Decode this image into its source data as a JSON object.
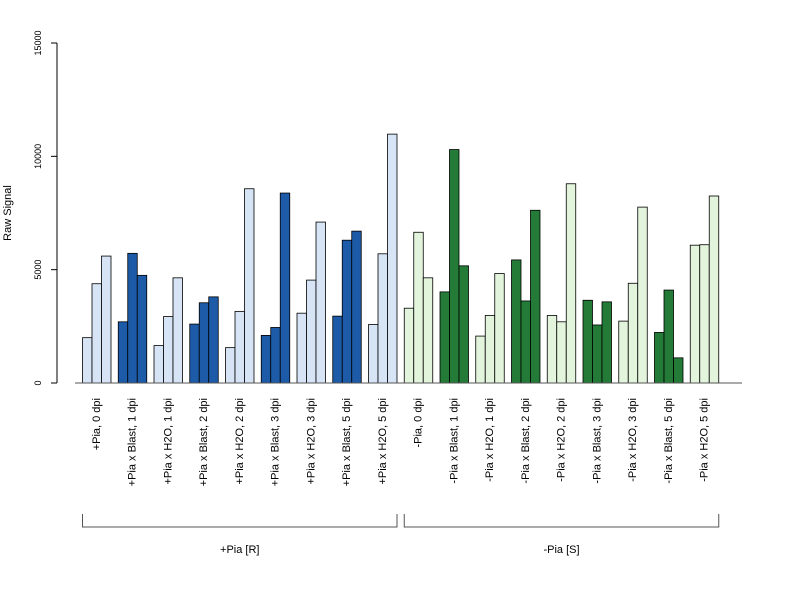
{
  "chart_data": {
    "type": "bar",
    "ylabel": "Raw Signal",
    "ylim": [
      0,
      15000
    ],
    "yticks": [
      "0",
      "5000",
      "10000",
      "15000"
    ],
    "ytick_values": [
      0,
      5000,
      10000,
      15000
    ],
    "colors": {
      "plus_light": "#d6e4f5",
      "plus_dark": "#1d5ba8",
      "minus_light": "#e3f4dc",
      "minus_dark": "#237b37"
    },
    "categories": [
      {
        "label": "+Pia, 0 dpi",
        "group": "plus",
        "shade": "light",
        "values": [
          2000,
          4380,
          5600
        ]
      },
      {
        "label": "+Pia x Blast, 1 dpi",
        "group": "plus",
        "shade": "dark",
        "values": [
          2700,
          5720,
          4750
        ]
      },
      {
        "label": "+Pia x H2O, 1 dpi",
        "group": "plus",
        "shade": "light",
        "values": [
          1650,
          2930,
          4640
        ]
      },
      {
        "label": "+Pia x Blast, 2 dpi",
        "group": "plus",
        "shade": "dark",
        "values": [
          2600,
          3540,
          3800
        ]
      },
      {
        "label": "+Pia x H2O, 2 dpi",
        "group": "plus",
        "shade": "light",
        "values": [
          1560,
          3160,
          8570
        ]
      },
      {
        "label": "+Pia x Blast, 3 dpi",
        "group": "plus",
        "shade": "dark",
        "values": [
          2100,
          2450,
          8380
        ]
      },
      {
        "label": "+Pia x H2O, 3 dpi",
        "group": "plus",
        "shade": "light",
        "values": [
          3080,
          4540,
          7100
        ]
      },
      {
        "label": "+Pia x Blast, 5 dpi",
        "group": "plus",
        "shade": "dark",
        "values": [
          2950,
          6300,
          6700
        ]
      },
      {
        "label": "+Pia x H2O, 5 dpi",
        "group": "plus",
        "shade": "light",
        "values": [
          2580,
          5700,
          10980
        ]
      },
      {
        "label": "-Pia, 0 dpi",
        "group": "minus",
        "shade": "light",
        "values": [
          3300,
          6650,
          4640
        ]
      },
      {
        "label": "-Pia x Blast, 1 dpi",
        "group": "minus",
        "shade": "dark",
        "values": [
          4020,
          10300,
          5170
        ]
      },
      {
        "label": "-Pia x H2O, 1 dpi",
        "group": "minus",
        "shade": "light",
        "values": [
          2070,
          2980,
          4830
        ]
      },
      {
        "label": "-Pia x Blast, 2 dpi",
        "group": "minus",
        "shade": "dark",
        "values": [
          5430,
          3620,
          7620
        ]
      },
      {
        "label": "-Pia x H2O, 2 dpi",
        "group": "minus",
        "shade": "light",
        "values": [
          2980,
          2700,
          8790
        ]
      },
      {
        "label": "-Pia x Blast, 3 dpi",
        "group": "minus",
        "shade": "dark",
        "values": [
          3650,
          2560,
          3580
        ]
      },
      {
        "label": "-Pia x H2O, 3 dpi",
        "group": "minus",
        "shade": "light",
        "values": [
          2730,
          4400,
          7760
        ]
      },
      {
        "label": "-Pia x Blast, 5 dpi",
        "group": "minus",
        "shade": "dark",
        "values": [
          2230,
          4100,
          1110
        ]
      },
      {
        "label": "-Pia x H2O, 5 dpi",
        "group": "minus",
        "shade": "light",
        "values": [
          6080,
          6100,
          8250
        ]
      }
    ],
    "groups": [
      {
        "key": "plus",
        "label": "+Pia [R]"
      },
      {
        "key": "minus",
        "label": "-Pia [S]"
      }
    ]
  }
}
